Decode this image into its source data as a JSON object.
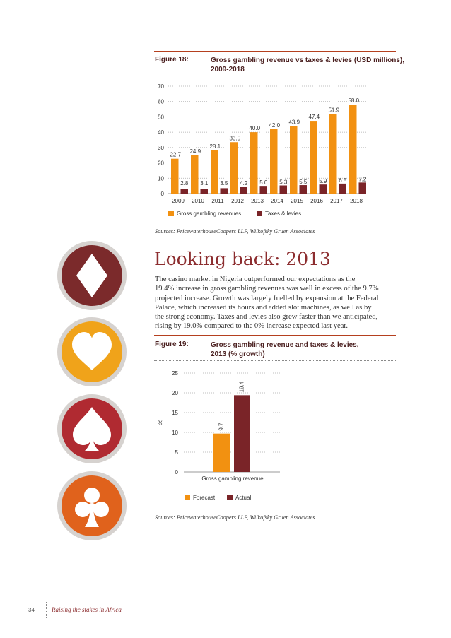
{
  "figure18": {
    "label": "Figure 18:",
    "title_line1": "Gross gambling revenue vs taxes & levies (USD millions),",
    "title_line2": "2009-2018",
    "source": "Sources: PricewaterhouseCoopers LLP, Wilkofsky Gruen Associates"
  },
  "figure19": {
    "label": "Figure 19:",
    "title_line1": "Gross gambling revenue and taxes & levies,",
    "title_line2": "2013 (% growth)",
    "source": "Sources: PricewaterhouseCoopers LLP, Wilkofsky Gruen Associates"
  },
  "section": {
    "heading": "Looking back: 2013",
    "lines": [
      "The casino market in Nigeria outperformed our expectations as the",
      "19.4% increase in gross gambling revenues was well in excess of the 9.7%",
      "projected increase. Growth was largely fuelled by expansion at the Federal",
      "Palace, which increased its hours and added slot machines, as well as by",
      "the strong economy. Taxes and levies also grew faster than we anticipated,",
      "rising by 19.0% compared to the 0% increase expected last year."
    ]
  },
  "footer": {
    "page_number": "34",
    "title": "Raising the stakes in Africa"
  },
  "icons": {
    "names": [
      "diamond-icon",
      "heart-icon",
      "spade-icon",
      "club-icon"
    ],
    "colors": [
      "#7b2a2b",
      "#f0a31a",
      "#b02a31",
      "#e0621c"
    ]
  },
  "chart_data": [
    {
      "type": "bar",
      "categories": [
        "2009",
        "2010",
        "2011",
        "2012",
        "2013",
        "2014",
        "2015",
        "2016",
        "2017",
        "2018"
      ],
      "series": [
        {
          "name": "Gross gambling revenues",
          "values": [
            22.7,
            24.9,
            28.1,
            33.5,
            40.0,
            42.0,
            43.9,
            47.4,
            51.9,
            58.0
          ],
          "labels": [
            "22.7",
            "24.9",
            "28.1",
            "33.5",
            "40.0",
            "42.0",
            "43.9",
            "47.4",
            "51.9",
            "58.0"
          ],
          "color": "#f29111"
        },
        {
          "name": "Taxes & levies",
          "values": [
            2.8,
            3.1,
            3.5,
            4.2,
            5.0,
            5.3,
            5.5,
            5.9,
            6.5,
            7.2
          ],
          "labels": [
            "2.8",
            "3.1",
            "3.5",
            "4.2",
            "5.0",
            "5.3",
            "5.5",
            "5.9",
            "6.5",
            "7.2"
          ],
          "color": "#7a2428"
        }
      ],
      "yticks": [
        "0",
        "10",
        "20",
        "30",
        "40",
        "50",
        "60",
        "70"
      ],
      "ylim": [
        0,
        70
      ],
      "grid": "dotted horizontal",
      "legend": "bottom"
    },
    {
      "type": "bar",
      "categories": [
        "Gross gambling revenue"
      ],
      "series": [
        {
          "name": "Forecast",
          "values": [
            9.7
          ],
          "labels": [
            "9.7"
          ],
          "color": "#f29111"
        },
        {
          "name": "Actual",
          "values": [
            19.4
          ],
          "labels": [
            "19.4"
          ],
          "color": "#7a2428"
        }
      ],
      "ylabel": "%",
      "yticks": [
        "0",
        "5",
        "10",
        "15",
        "20",
        "25"
      ],
      "ylim": [
        0,
        25
      ],
      "grid": "dotted horizontal",
      "legend": "bottom"
    }
  ]
}
